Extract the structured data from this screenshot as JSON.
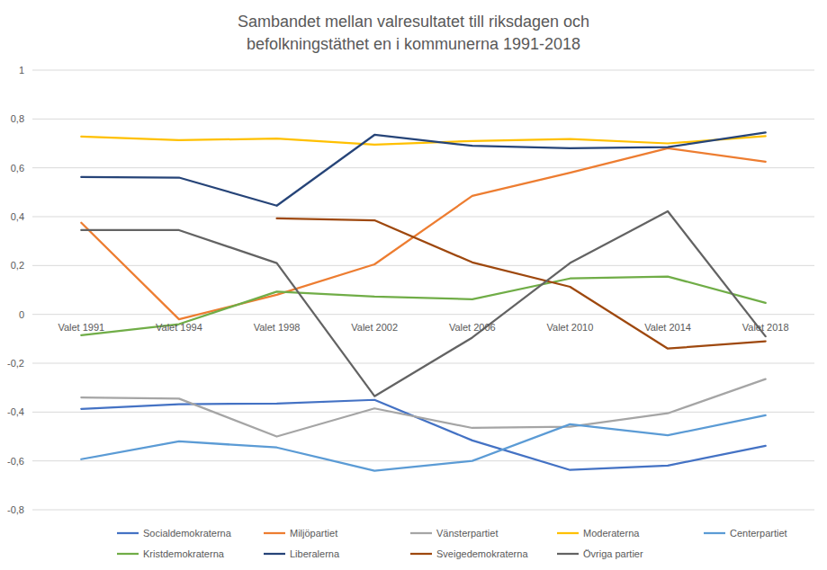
{
  "chart_data": {
    "type": "line",
    "title": "Sambandet mellan valresultatet till riksdagen och befolkningstäthet en i kommunerna 1991-2018",
    "categories": [
      "Valet 1991",
      "Valet 1994",
      "Valet 1998",
      "Valet 2002",
      "Valet 2006",
      "Valet 2010",
      "Valet 2014",
      "Valet 2018"
    ],
    "ylim": [
      -0.8,
      1
    ],
    "yticks": [
      {
        "value": -0.8,
        "label": "-0,8"
      },
      {
        "value": -0.6,
        "label": "-0,6"
      },
      {
        "value": -0.4,
        "label": "-0,4"
      },
      {
        "value": -0.2,
        "label": "-0,2"
      },
      0,
      {
        "value": 0.2,
        "label": "0,2"
      },
      {
        "value": 0.4,
        "label": "0,4"
      },
      {
        "value": 0.6,
        "label": "0,6"
      },
      {
        "value": 0.8,
        "label": "0,8"
      },
      1
    ],
    "grid": true,
    "legend": "bottom",
    "series": [
      {
        "name": "Socialdemokraterna",
        "color": "#4472c4",
        "values": [
          -0.387,
          -0.368,
          -0.365,
          -0.35,
          -0.516,
          -0.637,
          -0.619,
          -0.538
        ]
      },
      {
        "name": "Miljöpartiet",
        "color": "#ed7d31",
        "values": [
          0.375,
          -0.02,
          0.08,
          0.205,
          0.485,
          0.58,
          0.68,
          0.625
        ]
      },
      {
        "name": "Vänsterpartiet",
        "color": "#a5a5a5",
        "values": [
          -0.34,
          -0.345,
          -0.5,
          -0.385,
          -0.465,
          -0.46,
          -0.405,
          -0.265
        ]
      },
      {
        "name": "Moderaterna",
        "color": "#ffc000",
        "values": [
          0.728,
          0.713,
          0.72,
          0.695,
          0.71,
          0.718,
          0.7,
          0.73
        ]
      },
      {
        "name": "Centerpartiet",
        "color": "#5b9bd5",
        "values": [
          -0.593,
          -0.52,
          -0.545,
          -0.64,
          -0.6,
          -0.45,
          -0.495,
          -0.413
        ]
      },
      {
        "name": "Kristdemokraterna",
        "color": "#70ad47",
        "values": [
          -0.085,
          -0.04,
          0.093,
          0.073,
          0.062,
          0.147,
          0.155,
          0.047
        ]
      },
      {
        "name": "Liberalerna",
        "color": "#264478",
        "values": [
          0.562,
          0.56,
          0.445,
          0.735,
          0.69,
          0.68,
          0.685,
          0.745
        ]
      },
      {
        "name": "Sveigedemokraterna",
        "color": "#9e480e",
        "values": [
          null,
          null,
          0.393,
          0.385,
          0.213,
          0.113,
          -0.14,
          -0.11
        ]
      },
      {
        "name": "Övriga partier",
        "color": "#636363",
        "values": [
          0.345,
          0.345,
          0.21,
          -0.335,
          -0.095,
          0.21,
          0.422,
          -0.09
        ]
      }
    ]
  }
}
